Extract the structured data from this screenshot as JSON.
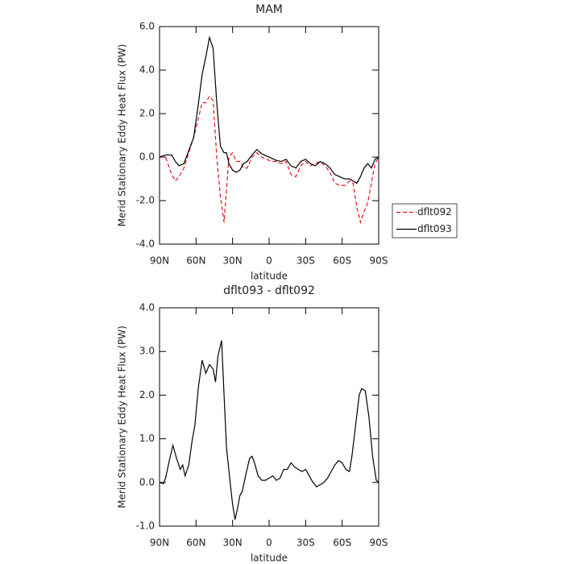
{
  "chart_data": [
    {
      "type": "line",
      "title": "MAM",
      "ylabel": "Merid Stationary Eddy Heat Flux (PW)",
      "xlabel": "latitude",
      "xlim": [
        90,
        -90
      ],
      "xticks": [
        {
          "value": 90,
          "label": "90N"
        },
        {
          "value": 60,
          "label": "60N"
        },
        {
          "value": 30,
          "label": "30N"
        },
        0,
        {
          "value": -30,
          "label": "30S"
        },
        {
          "value": -60,
          "label": "60S"
        },
        {
          "value": -90,
          "label": "90S"
        }
      ],
      "ylim": [
        -4,
        6
      ],
      "yticks": [
        {
          "value": -4,
          "label": "-4.0"
        },
        {
          "value": -2,
          "label": "-2.0"
        },
        {
          "value": 0,
          "label": "0.0"
        },
        {
          "value": 2,
          "label": "2.0"
        },
        {
          "value": 4,
          "label": "4.0"
        },
        {
          "value": 6,
          "label": "6.0"
        }
      ],
      "legend": "outside right",
      "x": [
        90,
        85,
        80,
        77,
        74,
        70,
        66,
        62,
        58,
        55,
        52,
        49,
        46,
        43,
        40,
        37,
        35,
        33,
        30,
        27,
        24,
        21,
        18,
        14,
        10,
        6,
        2,
        -2,
        -6,
        -10,
        -14,
        -18,
        -22,
        -26,
        -30,
        -34,
        -38,
        -42,
        -46,
        -50,
        -54,
        -58,
        -62,
        -66,
        -69,
        -72,
        -75,
        -78,
        -81,
        -84,
        -87,
        -90
      ],
      "series": [
        {
          "name": "dflt092",
          "color": "#e8141c",
          "linestyle": "dashed",
          "values": [
            0,
            0.0,
            -0.8,
            -1.1,
            -0.9,
            -0.5,
            0.2,
            0.9,
            1.8,
            2.5,
            2.5,
            2.8,
            2.6,
            0.0,
            -1.8,
            -3.0,
            -1.5,
            0.0,
            0.2,
            -0.2,
            -0.2,
            -0.5,
            -0.5,
            0.0,
            0.2,
            0.0,
            -0.1,
            -0.2,
            -0.2,
            -0.3,
            -0.2,
            -0.8,
            -0.9,
            -0.4,
            -0.2,
            -0.4,
            -0.3,
            -0.2,
            -0.4,
            -0.7,
            -1.2,
            -1.3,
            -1.3,
            -1.1,
            -1.2,
            -2.3,
            -3.0,
            -2.5,
            -2.1,
            -1.2,
            -0.3,
            0
          ]
        },
        {
          "name": "dflt093",
          "color": "#000000",
          "linestyle": "solid",
          "values": [
            0,
            0.1,
            0.1,
            -0.2,
            -0.4,
            -0.3,
            0.3,
            0.9,
            2.5,
            3.8,
            4.6,
            5.5,
            5.0,
            2.5,
            0.5,
            0.2,
            0.2,
            -0.3,
            -0.6,
            -0.7,
            -0.6,
            -0.3,
            -0.2,
            0.1,
            0.35,
            0.15,
            0.05,
            -0.05,
            -0.15,
            -0.2,
            -0.1,
            -0.4,
            -0.5,
            -0.2,
            -0.1,
            -0.3,
            -0.4,
            -0.2,
            -0.3,
            -0.5,
            -0.8,
            -0.9,
            -1.0,
            -1.0,
            -1.1,
            -1.2,
            -0.9,
            -0.5,
            -0.3,
            -0.5,
            -0.1,
            0
          ]
        }
      ]
    },
    {
      "type": "line",
      "title": "dflt093 - dflt092",
      "ylabel": "Merid Stationary Eddy Heat Flux (PW)",
      "xlabel": "latitude",
      "xlim": [
        90,
        -90
      ],
      "xticks": [
        {
          "value": 90,
          "label": "90N"
        },
        {
          "value": 60,
          "label": "60N"
        },
        {
          "value": 30,
          "label": "30N"
        },
        0,
        {
          "value": -30,
          "label": "30S"
        },
        {
          "value": -60,
          "label": "60S"
        },
        {
          "value": -90,
          "label": "90S"
        }
      ],
      "ylim": [
        -1,
        4
      ],
      "yticks": [
        {
          "value": -1,
          "label": "-1.0"
        },
        {
          "value": 0,
          "label": "0.0"
        },
        {
          "value": 1,
          "label": "1.0"
        },
        {
          "value": 2,
          "label": "2.0"
        },
        {
          "value": 3,
          "label": "3.0"
        },
        {
          "value": 4,
          "label": "4.0"
        }
      ],
      "x": [
        90,
        87,
        85,
        82,
        79,
        76,
        73,
        71,
        69,
        66,
        63,
        61,
        58,
        55,
        52,
        49,
        46,
        44,
        42,
        39,
        37,
        35,
        32,
        30,
        28,
        26,
        24,
        22,
        19,
        16,
        14,
        12,
        9,
        6,
        3,
        0,
        -3,
        -6,
        -9,
        -12,
        -15,
        -18,
        -21,
        -24,
        -27,
        -30,
        -33,
        -36,
        -39,
        -42,
        -45,
        -48,
        -51,
        -54,
        -57,
        -60,
        -63,
        -66,
        -68,
        -71,
        -74,
        -76,
        -79,
        -82,
        -85,
        -88,
        -90
      ],
      "series": [
        {
          "color": "#000000",
          "linestyle": "solid",
          "values": [
            0,
            -0.03,
            0.1,
            0.5,
            0.85,
            0.55,
            0.3,
            0.4,
            0.15,
            0.4,
            1.0,
            1.3,
            2.2,
            2.8,
            2.5,
            2.7,
            2.6,
            2.3,
            2.9,
            3.25,
            2.0,
            0.8,
            0.0,
            -0.5,
            -0.85,
            -0.6,
            -0.3,
            -0.2,
            0.2,
            0.55,
            0.6,
            0.45,
            0.15,
            0.05,
            0.05,
            0.1,
            0.15,
            0.05,
            0.1,
            0.3,
            0.3,
            0.45,
            0.35,
            0.3,
            0.25,
            0.3,
            0.15,
            0.0,
            -0.1,
            -0.05,
            0.0,
            0.1,
            0.25,
            0.4,
            0.5,
            0.45,
            0.3,
            0.25,
            0.6,
            1.3,
            2.0,
            2.15,
            2.1,
            1.5,
            0.6,
            0.05,
            0
          ]
        }
      ]
    }
  ]
}
